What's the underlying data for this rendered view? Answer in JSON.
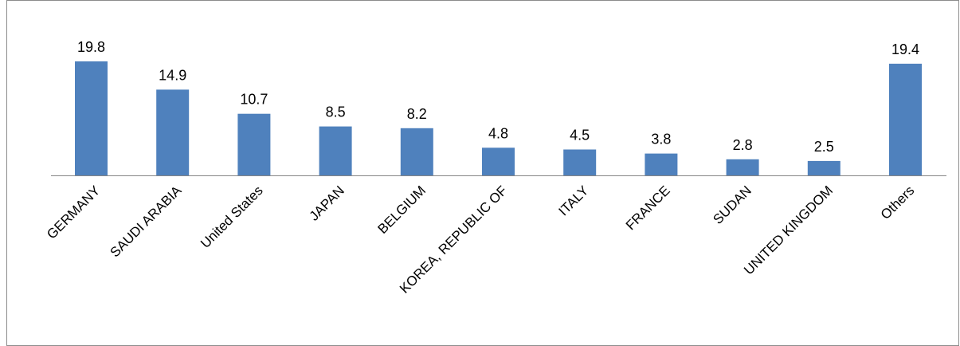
{
  "chart_data": {
    "type": "bar",
    "categories": [
      "GERMANY",
      "SAUDI ARABIA",
      "United States",
      "JAPAN",
      "BELGIUM",
      "KOREA, REPUBLIC OF",
      "ITALY",
      "FRANCE",
      "SUDAN",
      "UNITED KINGDOM",
      "Others"
    ],
    "values": [
      19.8,
      14.9,
      10.7,
      8.5,
      8.2,
      4.8,
      4.5,
      3.8,
      2.8,
      2.5,
      19.4
    ],
    "data_labels": [
      "19.8",
      "14.9",
      "10.7",
      "8.5",
      "8.2",
      "4.8",
      "4.5",
      "3.8",
      "2.8",
      "2.5",
      "19.4"
    ],
    "title": "",
    "xlabel": "",
    "ylabel": "",
    "ylim": [
      0,
      20
    ],
    "grid": false,
    "legend": "none",
    "bar_color": "#4f81bd",
    "axis_color": "#868686"
  }
}
